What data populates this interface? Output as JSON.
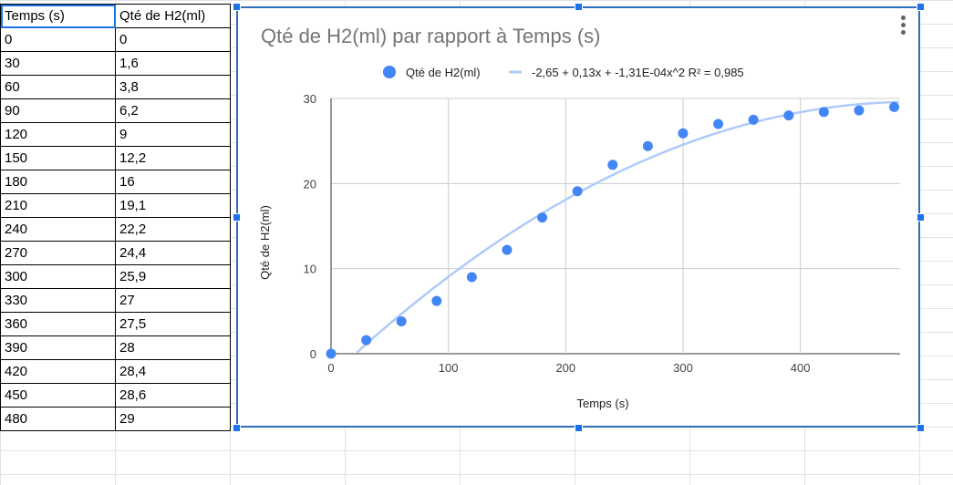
{
  "sheet": {
    "headers": [
      "Temps (s)",
      "Qté de H2(ml)"
    ],
    "rows": [
      [
        "0",
        "0"
      ],
      [
        "30",
        "1,6"
      ],
      [
        "60",
        "3,8"
      ],
      [
        "90",
        "6,2"
      ],
      [
        "120",
        "9"
      ],
      [
        "150",
        "12,2"
      ],
      [
        "180",
        "16"
      ],
      [
        "210",
        "19,1"
      ],
      [
        "240",
        "22,2"
      ],
      [
        "270",
        "24,4"
      ],
      [
        "300",
        "25,9"
      ],
      [
        "330",
        "27"
      ],
      [
        "360",
        "27,5"
      ],
      [
        "390",
        "28"
      ],
      [
        "420",
        "28,4"
      ],
      [
        "450",
        "28,6"
      ],
      [
        "480",
        "29"
      ]
    ]
  },
  "colors": {
    "point": "#4285f4",
    "trendline": "#aecbfa",
    "grid": "#cccccc",
    "frame": "#2f6fbf"
  },
  "chart_data": {
    "type": "scatter",
    "title": "Qté de H2(ml) par rapport à Temps (s)",
    "xlabel": "Temps (s)",
    "ylabel": "Qté de H2(ml)",
    "xlim": [
      0,
      485
    ],
    "ylim": [
      0,
      30
    ],
    "xticks": [
      0,
      100,
      200,
      300,
      400
    ],
    "yticks": [
      0,
      10,
      20,
      30
    ],
    "grid": true,
    "legend_position": "top",
    "series": [
      {
        "name": "Qté de H2(ml)",
        "x": [
          0,
          30,
          60,
          90,
          120,
          150,
          180,
          210,
          240,
          270,
          300,
          330,
          360,
          390,
          420,
          450,
          480
        ],
        "y": [
          0,
          1.6,
          3.8,
          6.2,
          9,
          12.2,
          16,
          19.1,
          22.2,
          24.4,
          25.9,
          27,
          27.5,
          28,
          28.4,
          28.6,
          29
        ]
      }
    ],
    "trendline": {
      "type": "polynomial",
      "label": "-2,65 + 0,13x + -1,31E-04x^2 R² = 0,985",
      "coefficients": [
        -2.65,
        0.13,
        -0.000131
      ]
    }
  }
}
